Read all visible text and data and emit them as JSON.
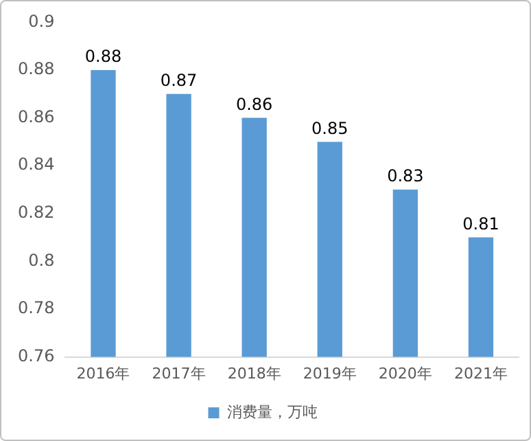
{
  "chart_data": {
    "type": "bar",
    "categories": [
      "2016年",
      "2017年",
      "2018年",
      "2019年",
      "2020年",
      "2021年"
    ],
    "series": [
      {
        "name": "消费量，万吨",
        "color": "#5b9bd5",
        "values": [
          0.88,
          0.87,
          0.86,
          0.85,
          0.83,
          0.81
        ]
      }
    ],
    "ylim": [
      0.76,
      0.9
    ],
    "yticks": [
      0.76,
      0.78,
      0.8,
      0.82,
      0.84,
      0.86,
      0.88,
      0.9
    ],
    "grid": false,
    "legend": "bottom",
    "data_labels": true
  }
}
